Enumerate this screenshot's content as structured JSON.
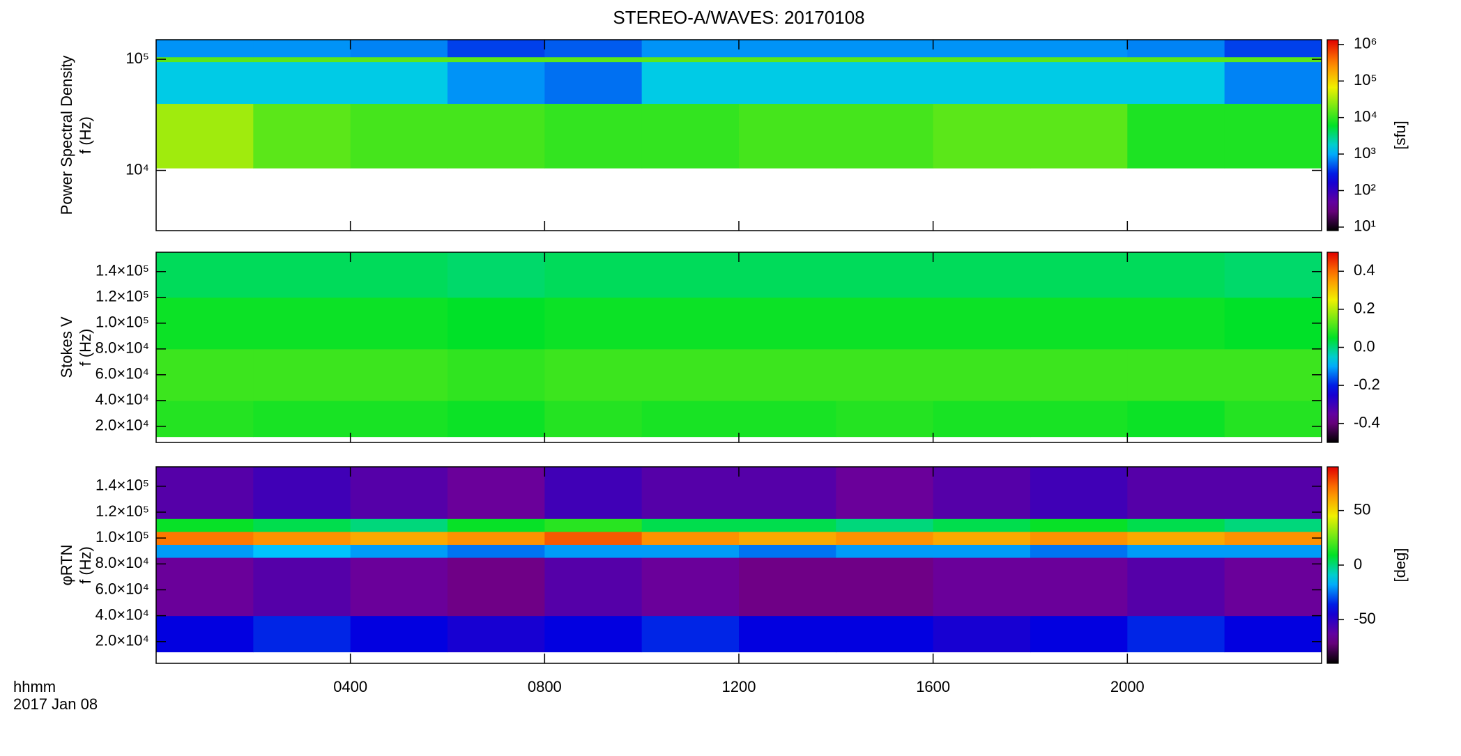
{
  "chart_data": [
    {
      "type": "heatmap",
      "title": "STEREO-A/WAVES: 20170108",
      "ylabel": "Power Spectral Density",
      "ylabel2": "f (Hz)",
      "zlabel": "[sfu]",
      "ylog": true,
      "ylim": [
        2870,
        150000
      ],
      "yticks": [
        {
          "value": 10000,
          "label": "10⁴"
        },
        {
          "value": 100000,
          "label": "10⁵"
        }
      ],
      "x_edges": [
        0,
        2,
        4,
        6,
        8,
        10,
        12,
        14,
        16,
        18,
        20,
        22,
        24
      ],
      "y_edges": [
        10500,
        40000,
        95000,
        105000,
        150000
      ],
      "z": [
        [
          30000,
          15000,
          12000,
          12000,
          10000,
          10000,
          12000,
          12000,
          15000,
          15000,
          8000,
          8000
        ],
        [
          1500,
          1500,
          1500,
          800,
          600,
          1500,
          1500,
          1500,
          1500,
          1500,
          1500,
          700
        ],
        [
          15000,
          15000,
          15000,
          15000,
          15000,
          15000,
          15000,
          15000,
          15000,
          15000,
          15000,
          15000
        ],
        [
          800,
          800,
          700,
          400,
          500,
          800,
          800,
          800,
          800,
          800,
          700,
          400
        ]
      ],
      "zlog": true,
      "zlim": [
        8,
        1350000
      ],
      "zticks": [
        {
          "value": 10,
          "label": "10¹"
        },
        {
          "value": 100,
          "label": "10²"
        },
        {
          "value": 1000,
          "label": "10³"
        },
        {
          "value": 10000,
          "label": "10⁴"
        },
        {
          "value": 100000,
          "label": "10⁵"
        },
        {
          "value": 1000000,
          "label": "10⁶"
        }
      ]
    },
    {
      "type": "heatmap",
      "ylabel": "Stokes V",
      "ylabel2": "f (Hz)",
      "ylog": false,
      "ylim": [
        7500,
        155000
      ],
      "yticks": [
        {
          "value": 20000,
          "label": "2.0×10⁴"
        },
        {
          "value": 40000,
          "label": "4.0×10⁴"
        },
        {
          "value": 60000,
          "label": "6.0×10⁴"
        },
        {
          "value": 80000,
          "label": "8.0×10⁴"
        },
        {
          "value": 100000,
          "label": "1.0×10⁵"
        },
        {
          "value": 120000,
          "label": "1.2×10⁵"
        },
        {
          "value": 140000,
          "label": "1.4×10⁵"
        }
      ],
      "x_edges": [
        0,
        2,
        4,
        6,
        8,
        10,
        12,
        14,
        16,
        18,
        20,
        22,
        24
      ],
      "y_edges": [
        12000,
        40000,
        80000,
        120000,
        155000
      ],
      "z": [
        [
          0.08,
          0.07,
          0.07,
          0.06,
          0.08,
          0.07,
          0.07,
          0.08,
          0.07,
          0.07,
          0.06,
          0.08
        ],
        [
          0.1,
          0.1,
          0.1,
          0.09,
          0.1,
          0.1,
          0.1,
          0.1,
          0.1,
          0.1,
          0.1,
          0.1
        ],
        [
          0.06,
          0.06,
          0.06,
          0.05,
          0.06,
          0.06,
          0.06,
          0.06,
          0.06,
          0.06,
          0.06,
          0.05
        ],
        [
          0.02,
          0.02,
          0.02,
          0.01,
          0.02,
          0.02,
          0.02,
          0.02,
          0.02,
          0.02,
          0.02,
          0.01
        ]
      ],
      "zlog": false,
      "zlim": [
        -0.5,
        0.5
      ],
      "zticks": [
        -0.4,
        -0.2,
        {
          "value": 0,
          "label": "0.0"
        },
        0.2,
        0.4
      ]
    },
    {
      "type": "heatmap",
      "ylabel": "φRTN",
      "ylabel2": "f (Hz)",
      "zlabel": "[deg]",
      "xlabel": "hhmm",
      "date_label": "2017 Jan 08",
      "ylog": false,
      "ylim": [
        3200,
        155000
      ],
      "yticks": [
        {
          "value": 20000,
          "label": "2.0×10⁴"
        },
        {
          "value": 40000,
          "label": "4.0×10⁴"
        },
        {
          "value": 60000,
          "label": "6.0×10⁴"
        },
        {
          "value": 80000,
          "label": "8.0×10⁴"
        },
        {
          "value": 100000,
          "label": "1.0×10⁵"
        },
        {
          "value": 120000,
          "label": "1.2×10⁵"
        },
        {
          "value": 140000,
          "label": "1.4×10⁵"
        }
      ],
      "xlim": [
        0,
        24
      ],
      "xticks": [
        {
          "value": 4,
          "label": "0400"
        },
        {
          "value": 8,
          "label": "0800"
        },
        {
          "value": 12,
          "label": "1200"
        },
        {
          "value": 16,
          "label": "1600"
        },
        {
          "value": 20,
          "label": "2000"
        }
      ],
      "x_edges": [
        0,
        2,
        4,
        6,
        8,
        10,
        12,
        14,
        16,
        18,
        20,
        22,
        24
      ],
      "y_edges": [
        12000,
        40000,
        85000,
        95000,
        105000,
        115000,
        155000
      ],
      "z": [
        [
          -40,
          -35,
          -40,
          -45,
          -40,
          -35,
          -40,
          -40,
          -45,
          -40,
          -35,
          -40
        ],
        [
          -65,
          -60,
          -65,
          -70,
          -60,
          -65,
          -70,
          -70,
          -65,
          -65,
          -60,
          -65
        ],
        [
          -20,
          -15,
          -20,
          -25,
          -20,
          -20,
          -25,
          -20,
          -20,
          -25,
          -20,
          -20
        ],
        [
          70,
          65,
          60,
          65,
          75,
          65,
          60,
          65,
          60,
          65,
          60,
          65
        ],
        [
          10,
          5,
          0,
          10,
          15,
          5,
          5,
          0,
          5,
          10,
          5,
          0
        ],
        [
          -60,
          -55,
          -60,
          -65,
          -55,
          -60,
          -60,
          -65,
          -60,
          -55,
          -60,
          -60
        ]
      ],
      "zlog": false,
      "zlim": [
        -90,
        90
      ],
      "zticks": [
        -50,
        0,
        50
      ]
    }
  ]
}
